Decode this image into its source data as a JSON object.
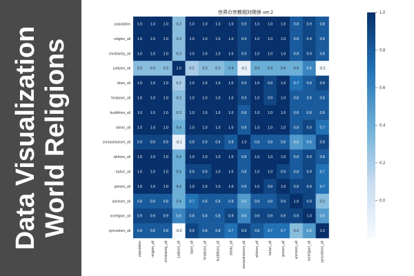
{
  "banner": {
    "line1": "Data Visualization",
    "line2": "World Religions"
  },
  "colors": {
    "panel_background": "#4a4a4a",
    "banner_text": "#ffffff",
    "heat_low": "#f7fbff",
    "heat_high": "#08306b"
  },
  "chart_data": {
    "type": "heatmap",
    "title": "世界の宗教相対関係 ver.2",
    "labels": [
      "population",
      "religion_all",
      "christianity_all",
      "judaism_all",
      "islam_all",
      "hinduism_all",
      "buddhism_all",
      "shinto_all",
      "zoroastrianism_all",
      "sikhism_all",
      "baha'i_all",
      "jainism_all",
      "animism_all",
      "noreligion_all",
      "syncretism_all"
    ],
    "values": [
      [
        1.0,
        1.0,
        1.0,
        0.3,
        1.0,
        1.0,
        1.0,
        1.0,
        0.9,
        1.0,
        1.0,
        1.0,
        0.8,
        0.9,
        0.8
      ],
      [
        1.0,
        1.0,
        1.0,
        0.3,
        1.0,
        1.0,
        1.0,
        1.0,
        0.9,
        1.0,
        1.0,
        1.0,
        0.8,
        0.9,
        0.8
      ],
      [
        1.0,
        1.0,
        1.0,
        0.3,
        1.0,
        1.0,
        1.0,
        1.0,
        0.9,
        1.0,
        1.0,
        1.0,
        0.8,
        0.9,
        0.8
      ],
      [
        0.3,
        0.3,
        0.3,
        1.0,
        0.2,
        0.3,
        0.3,
        0.4,
        -0.1,
        0.4,
        0.4,
        0.4,
        0.4,
        0.6,
        -0.2
      ],
      [
        1.0,
        1.0,
        1.0,
        0.2,
        1.0,
        1.0,
        1.0,
        1.0,
        0.9,
        1.0,
        0.9,
        1.0,
        0.7,
        0.8,
        0.9
      ],
      [
        1.0,
        1.0,
        1.0,
        0.3,
        1.0,
        1.0,
        1.0,
        1.0,
        0.9,
        1.0,
        0.9,
        1.0,
        0.8,
        0.8,
        0.8
      ],
      [
        1.0,
        1.0,
        1.0,
        0.3,
        1.0,
        1.0,
        1.0,
        1.0,
        0.8,
        1.0,
        1.0,
        1.0,
        0.8,
        0.8,
        0.8
      ],
      [
        1.0,
        1.0,
        1.0,
        0.4,
        1.0,
        1.0,
        1.0,
        1.0,
        0.8,
        1.0,
        1.0,
        1.0,
        0.8,
        0.9,
        0.7
      ],
      [
        0.9,
        0.9,
        0.9,
        -0.1,
        0.9,
        0.9,
        0.9,
        0.8,
        1.0,
        0.8,
        0.8,
        0.8,
        0.5,
        0.6,
        0.9
      ],
      [
        1.0,
        1.0,
        1.0,
        0.4,
        1.0,
        1.0,
        1.0,
        1.0,
        0.8,
        1.0,
        1.0,
        1.0,
        0.8,
        0.9,
        0.8
      ],
      [
        1.0,
        1.0,
        1.0,
        0.4,
        0.9,
        0.9,
        1.0,
        1.0,
        0.8,
        1.0,
        1.0,
        0.9,
        0.8,
        0.9,
        0.7
      ],
      [
        1.0,
        1.0,
        1.0,
        0.4,
        1.0,
        1.0,
        1.0,
        1.0,
        0.8,
        1.0,
        0.9,
        1.0,
        0.9,
        0.9,
        0.7
      ],
      [
        0.8,
        0.8,
        0.8,
        0.4,
        0.7,
        0.8,
        0.8,
        0.8,
        0.5,
        0.8,
        0.8,
        0.9,
        1.0,
        0.9,
        0.3
      ],
      [
        0.9,
        0.9,
        0.9,
        0.6,
        0.8,
        0.8,
        0.8,
        0.9,
        0.6,
        0.9,
        0.9,
        0.9,
        0.9,
        1.0,
        0.5
      ],
      [
        0.8,
        0.8,
        0.8,
        -0.2,
        0.9,
        0.8,
        0.8,
        0.7,
        0.9,
        0.8,
        0.7,
        0.7,
        0.3,
        0.5,
        1.0
      ]
    ],
    "colorbar": {
      "range": [
        -0.2,
        1.0
      ],
      "ticks": [
        "1.0",
        "0.8",
        "0.6",
        "0.4",
        "0.2",
        "0.0"
      ],
      "placement": "right"
    }
  }
}
